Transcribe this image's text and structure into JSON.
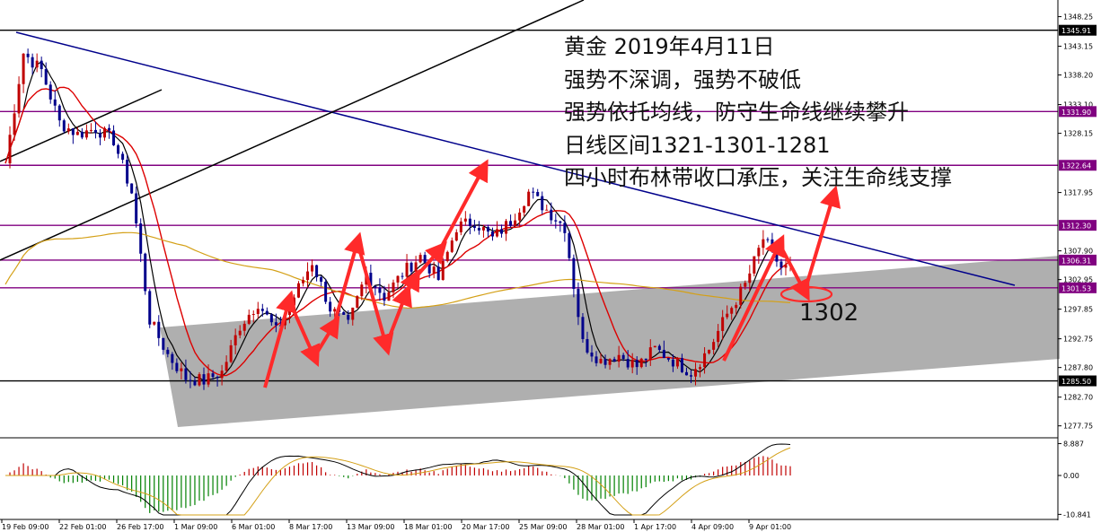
{
  "chart_data": {
    "type": "candlestick",
    "title_lines": [
      "黄金 2019年4月11日",
      "强势不深调，强势不破低",
      "强势依托均线，防守生命线继续攀升",
      "日线区间1321-1301-1281",
      "四小时布林带收口承压，关注生命线支撑"
    ],
    "annotation_level": "1302",
    "y_ticks": [
      1348.25,
      1343.15,
      1338.2,
      1333.1,
      1328.15,
      1317.95,
      1307.9,
      1302.95,
      1297.85,
      1292.75,
      1287.8,
      1282.7,
      1277.75
    ],
    "ylim": [
      1276.0,
      1350.5
    ],
    "horizontal_levels": [
      {
        "value": 1345.91,
        "label": "1345.91",
        "color": "#000000",
        "label_bg": "#000000"
      },
      {
        "value": 1331.9,
        "label": "1331.90",
        "color": "#800080",
        "label_bg": "#800080"
      },
      {
        "value": 1322.64,
        "label": "1322.64",
        "color": "#800080",
        "label_bg": "#800080"
      },
      {
        "value": 1312.3,
        "label": "1312.30",
        "color": "#800080",
        "label_bg": "#800080"
      },
      {
        "value": 1306.31,
        "label": "1306.31",
        "color": "#800080",
        "label_bg": "#800080"
      },
      {
        "value": 1301.53,
        "label": "1301.53",
        "color": "#800080",
        "label_bg": "#800080"
      },
      {
        "value": 1285.5,
        "label": "1285.50",
        "color": "#000000",
        "label_bg": "#000000"
      }
    ],
    "x_labels": [
      "19 Feb 09:00",
      "22 Feb 01:00",
      "26 Feb 17:00",
      "1 Mar 09:00",
      "6 Mar 01:00",
      "8 Mar 17:00",
      "13 Mar 09:00",
      "18 Mar 01:00",
      "20 Mar 17:00",
      "25 Mar 09:00",
      "28 Mar 01:00",
      "1 Apr 17:00",
      "4 Apr 09:00",
      "9 Apr 01:00"
    ],
    "close_path": [
      [
        0,
        1323
      ],
      [
        4,
        1342
      ],
      [
        8,
        1339
      ],
      [
        12,
        1330
      ],
      [
        16,
        1328
      ],
      [
        20,
        1329
      ],
      [
        24,
        1327
      ],
      [
        28,
        1318
      ],
      [
        32,
        1296
      ],
      [
        36,
        1290
      ],
      [
        40,
        1286
      ],
      [
        44,
        1285.5
      ],
      [
        48,
        1287
      ],
      [
        52,
        1295
      ],
      [
        56,
        1299
      ],
      [
        60,
        1294
      ],
      [
        64,
        1300
      ],
      [
        68,
        1306
      ],
      [
        72,
        1298
      ],
      [
        76,
        1295
      ],
      [
        80,
        1304
      ],
      [
        84,
        1300
      ],
      [
        88,
        1304
      ],
      [
        92,
        1307
      ],
      [
        96,
        1303
      ],
      [
        100,
        1312
      ],
      [
        104,
        1313
      ],
      [
        108,
        1310
      ],
      [
        112,
        1313
      ],
      [
        116,
        1318
      ],
      [
        120,
        1315
      ],
      [
        124,
        1312
      ],
      [
        128,
        1292
      ],
      [
        132,
        1289
      ],
      [
        136,
        1290
      ],
      [
        140,
        1288
      ],
      [
        144,
        1291
      ],
      [
        148,
        1289
      ],
      [
        152,
        1287
      ],
      [
        156,
        1291
      ],
      [
        160,
        1297
      ],
      [
        164,
        1302
      ],
      [
        168,
        1310
      ],
      [
        172,
        1305
      ]
    ],
    "indicator": {
      "type": "macd",
      "y_ticks": [
        8.887,
        0.0,
        -10.841
      ],
      "ylim": [
        -11.5,
        9.5
      ]
    },
    "colors": {
      "up_candle": "#c00000",
      "down_candle": "#00008b",
      "fast_ma": "#000000",
      "mid_ma": "#dd0000",
      "slow_ma": "#d4a017",
      "trend": "#00008b",
      "arrows": "#ff2a2a",
      "channel": "#a6a6a6"
    }
  }
}
